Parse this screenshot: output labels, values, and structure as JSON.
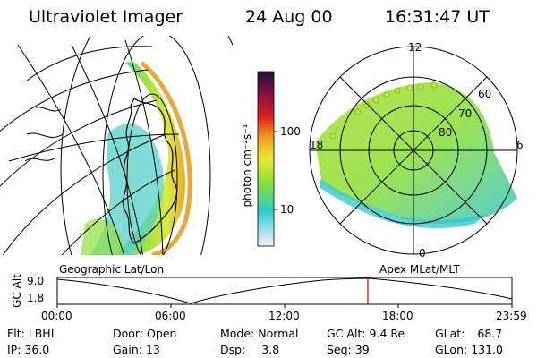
{
  "header": {
    "instrument": "Ultraviolet Imager",
    "date": "24 Aug 00",
    "time": "16:31:47 UT"
  },
  "colorbar": {
    "unit_label": "photon cm⁻²s⁻¹",
    "ticks": [
      "100",
      "10"
    ]
  },
  "polar_plot": {
    "mlt_labels": [
      "12",
      "18",
      "6",
      "0"
    ],
    "lat_labels": [
      "60",
      "70",
      "80"
    ]
  },
  "map_labels": {
    "left": "Geographic Lat/Lon",
    "right": "Apex MLat/MLT"
  },
  "altitude_plot": {
    "ylabel": "GC Alt",
    "y_ticks": [
      "9.0",
      "1.8"
    ],
    "x_ticks": [
      "00:00",
      "06:00",
      "12:00",
      "18:00",
      "23:59"
    ],
    "current_time_marker": "16:31"
  },
  "status": {
    "flt_label": "Flt:",
    "flt_value": "LBHL",
    "ip_label": "IP:",
    "ip_value": "36.0",
    "door_label": "Door:",
    "door_value": "Open",
    "gain_label": "Gain:",
    "gain_value": "13",
    "mode_label": "Mode:",
    "mode_value": "Normal",
    "dsp_label": "Dsp:",
    "dsp_value": "3.8",
    "gcalt_label": "GC Alt:",
    "gcalt_value": "9.4 Re",
    "seq_label": "Seq:",
    "seq_value": "39",
    "glat_label": "GLat:",
    "glat_value": "68.7",
    "glon_label": "GLon:",
    "glon_value": "131.0"
  },
  "colors": {
    "marker": "#cc0000",
    "aurora_low": "#3ec8d8",
    "aurora_mid": "#9ee03a",
    "aurora_high": "#e8b020"
  }
}
